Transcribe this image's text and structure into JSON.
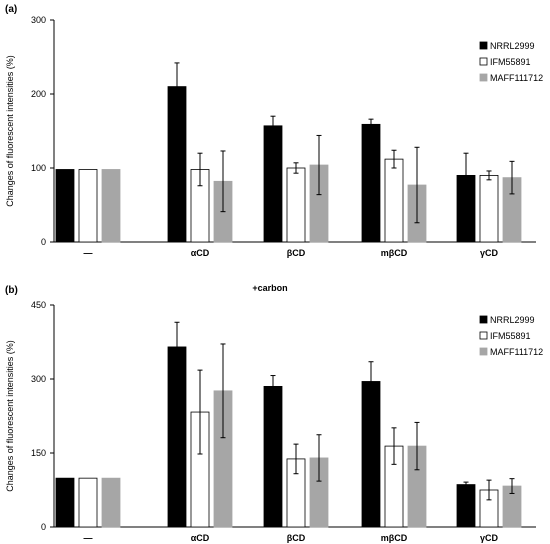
{
  "chart_data": [
    {
      "type": "bar",
      "panel_label": "(a)",
      "title": "",
      "xlabel": "",
      "ylabel": "Changes of fluorescent intensities (%)",
      "ylim": [
        0,
        300
      ],
      "yticks": [
        "0",
        "100",
        "200",
        "300"
      ],
      "grid": false,
      "legend_position": "right",
      "categories": [
        "—",
        "αCD",
        "βCD",
        "mβCD",
        "γCD"
      ],
      "series": [
        {
          "name": "NRRL2999",
          "color": "#000000",
          "values": [
            98,
            210,
            157,
            159,
            90
          ],
          "errors": [
            0,
            32,
            13,
            7,
            30
          ]
        },
        {
          "name": "IFM55891",
          "color": "#ffffff",
          "values": [
            98,
            98,
            100,
            112,
            90
          ],
          "errors": [
            0,
            22,
            7,
            12,
            6
          ]
        },
        {
          "name": "MAFF111712",
          "color": "#a6a6a6",
          "values": [
            98,
            82,
            104,
            77,
            87
          ],
          "errors": [
            0,
            41,
            40,
            51,
            22
          ]
        }
      ]
    },
    {
      "type": "bar",
      "panel_label": "(b)",
      "title": "+carbon",
      "xlabel": "",
      "ylabel": "Changes of fluorescent intensities (%)",
      "ylim": [
        0,
        450
      ],
      "yticks": [
        "0",
        "150",
        "300",
        "450"
      ],
      "grid": false,
      "legend_position": "right",
      "categories": [
        "—",
        "αCD",
        "βCD",
        "mβCD",
        "γCD"
      ],
      "series": [
        {
          "name": "NRRL2999",
          "color": "#000000",
          "values": [
            99,
            365,
            285,
            295,
            86
          ],
          "errors": [
            0,
            50,
            22,
            40,
            5
          ]
        },
        {
          "name": "IFM55891",
          "color": "#ffffff",
          "values": [
            99,
            233,
            138,
            164,
            75
          ],
          "errors": [
            0,
            85,
            30,
            37,
            20
          ]
        },
        {
          "name": "MAFF111712",
          "color": "#a6a6a6",
          "values": [
            99,
            276,
            140,
            164,
            83
          ],
          "errors": [
            0,
            95,
            47,
            48,
            15
          ]
        }
      ]
    }
  ]
}
